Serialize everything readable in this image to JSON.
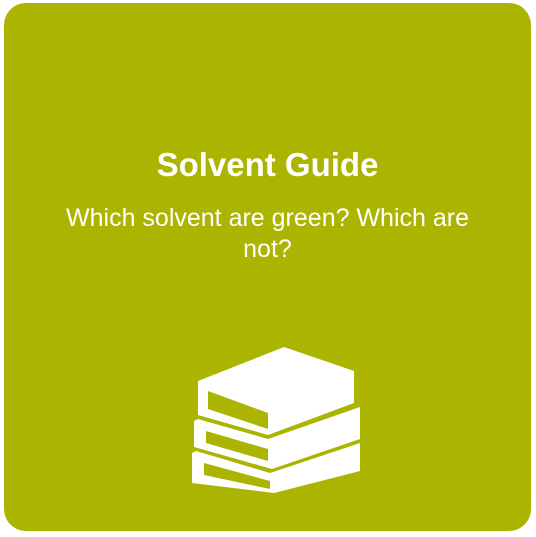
{
  "card": {
    "title": "Solvent Guide",
    "description": "Which solvent are green? Which are not?",
    "icon": "books-icon",
    "background_color": "#abb501",
    "text_color": "#ffffff"
  }
}
